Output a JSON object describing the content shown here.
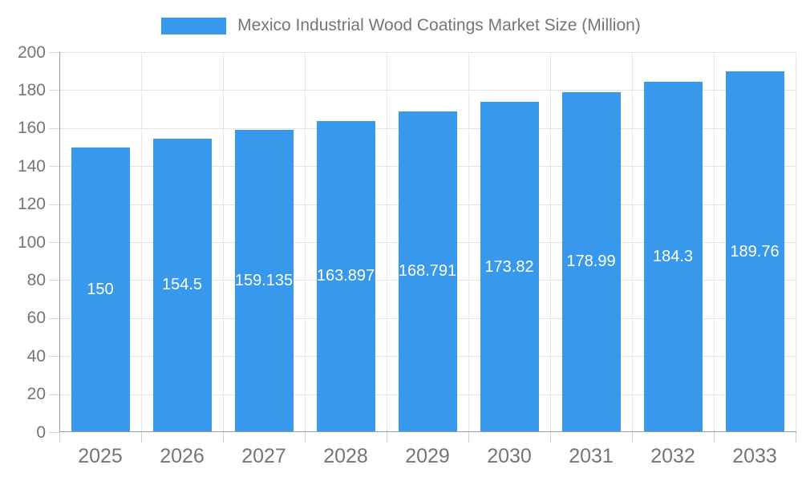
{
  "legend": {
    "label": "Mexico Industrial Wood Coatings Market Size (Million)"
  },
  "colors": {
    "bar": "#3899ec",
    "grid": "#e3e3e3",
    "axis": "#9b9b9b",
    "label_gray": "#757575",
    "bar_label_white": "#ffffff"
  },
  "chart_data": {
    "type": "bar",
    "title": "Mexico Industrial Wood Coatings Market Size (Million)",
    "categories": [
      "2025",
      "2026",
      "2027",
      "2028",
      "2029",
      "2030",
      "2031",
      "2032",
      "2033"
    ],
    "values": [
      150,
      154.5,
      159.135,
      163.897,
      168.791,
      173.82,
      178.99,
      184.3,
      189.76
    ],
    "bar_labels": [
      "150",
      "154.5",
      "159.135",
      "163.897",
      "168.791",
      "173.82",
      "178.99",
      "184.3",
      "189.76"
    ],
    "xlabel": "",
    "ylabel": "",
    "ylim": [
      0,
      200
    ],
    "ytick_step": 20,
    "ytick_labels": [
      "0",
      "20",
      "40",
      "60",
      "80",
      "100",
      "120",
      "140",
      "160",
      "180",
      "200"
    ],
    "grid": true,
    "legend_position": "top"
  }
}
